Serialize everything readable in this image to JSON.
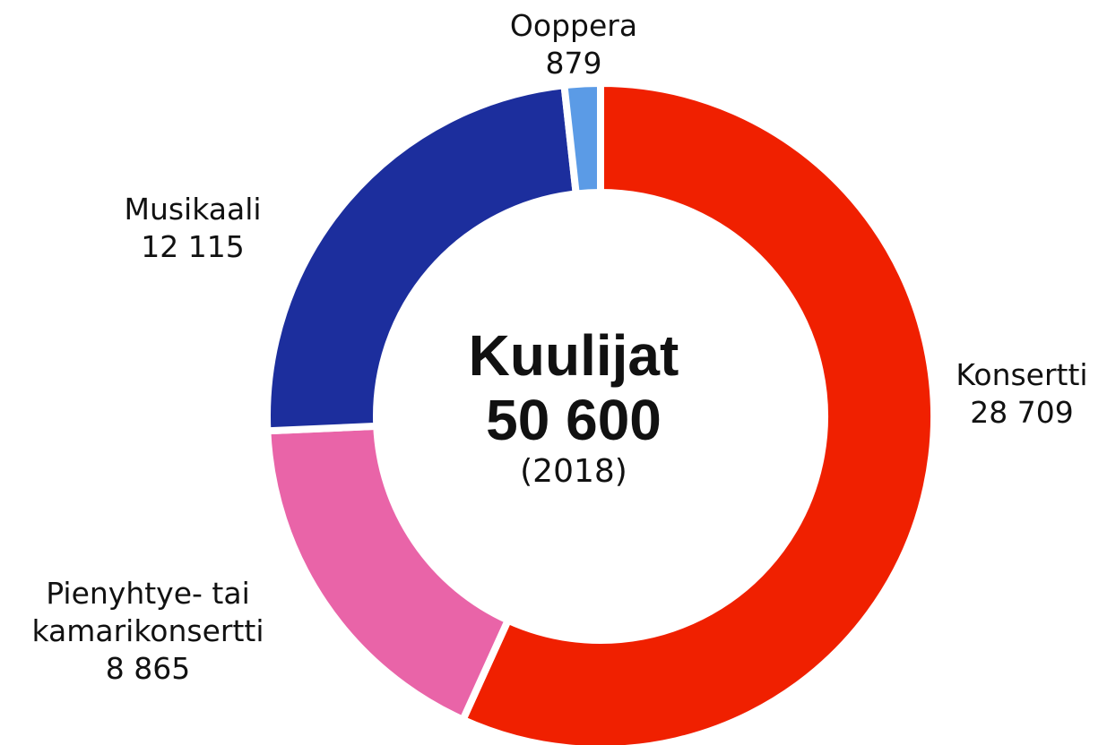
{
  "chart_data": {
    "type": "donut",
    "categories": [
      "Konsertti",
      "Pienyhtye- tai kamarikonsertti",
      "Musikaali",
      "Ooppera"
    ],
    "values": [
      28709,
      8865,
      12115,
      879
    ],
    "value_labels": [
      "28 709",
      "8 865",
      "12 115",
      "879"
    ],
    "colors": [
      "#f02000",
      "#e964a8",
      "#1c2e9d",
      "#5b9be6"
    ],
    "center_title": "Kuulijat",
    "center_value": "50 600",
    "center_subtitle": "(2018)"
  }
}
